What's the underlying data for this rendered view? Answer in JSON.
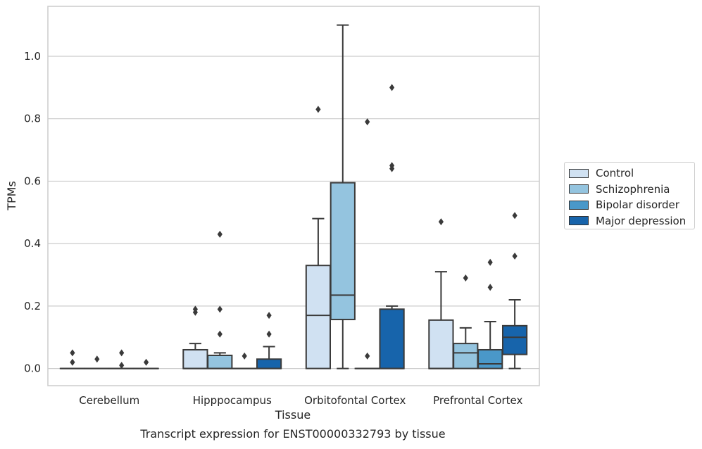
{
  "chart_data": {
    "type": "box",
    "caption": "Transcript expression for ENST00000332793 by tissue",
    "xlabel": "Tissue",
    "ylabel": "TPMs",
    "ylim": [
      -0.055,
      1.16
    ],
    "yticks": [
      0.0,
      0.2,
      0.4,
      0.6,
      0.8,
      1.0
    ],
    "ytick_labels": [
      "0.0",
      "0.2",
      "0.4",
      "0.6",
      "0.8",
      "1.0"
    ],
    "grid": "horizontal",
    "legend_position": "right-outside",
    "categories": [
      "Cerebellum",
      "Hipppocampus",
      "Orbitofontal Cortex",
      "Prefrontal Cortex"
    ],
    "series": [
      {
        "name": "Control",
        "color": "#d0e1f2",
        "boxes": [
          {
            "whislo": 0,
            "q1": 0,
            "med": 0,
            "q3": 0,
            "whishi": 0,
            "fliers": [
              0.05,
              0.02
            ]
          },
          {
            "whislo": 0,
            "q1": 0,
            "med": 0,
            "q3": 0.06,
            "whishi": 0.08,
            "fliers": [
              0.19,
              0.18
            ]
          },
          {
            "whislo": 0,
            "q1": 0,
            "med": 0.17,
            "q3": 0.33,
            "whishi": 0.48,
            "fliers": [
              0.83
            ]
          },
          {
            "whislo": 0,
            "q1": 0,
            "med": 0,
            "q3": 0.155,
            "whishi": 0.31,
            "fliers": [
              0.47
            ]
          }
        ]
      },
      {
        "name": "Schizophrenia",
        "color": "#94c4df",
        "boxes": [
          {
            "whislo": 0,
            "q1": 0,
            "med": 0,
            "q3": 0,
            "whishi": 0,
            "fliers": [
              0.03
            ]
          },
          {
            "whislo": 0,
            "q1": 0,
            "med": 0,
            "q3": 0.042,
            "whishi": 0.05,
            "fliers": [
              0.43,
              0.19,
              0.11
            ]
          },
          {
            "whislo": 0,
            "q1": 0.157,
            "med": 0.235,
            "q3": 0.595,
            "whishi": 1.1,
            "fliers": []
          },
          {
            "whislo": 0,
            "q1": 0,
            "med": 0.05,
            "q3": 0.08,
            "whishi": 0.13,
            "fliers": [
              0.29
            ]
          }
        ]
      },
      {
        "name": "Bipolar disorder",
        "color": "#4a98c9",
        "boxes": [
          {
            "whislo": 0,
            "q1": 0,
            "med": 0,
            "q3": 0,
            "whishi": 0,
            "fliers": [
              0.05,
              0.01
            ]
          },
          {
            "whislo": 0,
            "q1": 0,
            "med": 0,
            "q3": 0,
            "whishi": 0,
            "fliers": [
              0.04
            ]
          },
          {
            "whislo": 0,
            "q1": 0,
            "med": 0,
            "q3": 0,
            "whishi": 0,
            "fliers": [
              0.79,
              0.04
            ]
          },
          {
            "whislo": 0,
            "q1": 0,
            "med": 0.015,
            "q3": 0.06,
            "whishi": 0.15,
            "fliers": [
              0.34,
              0.26
            ]
          }
        ]
      },
      {
        "name": "Major depression",
        "color": "#1764ab",
        "boxes": [
          {
            "whislo": 0,
            "q1": 0,
            "med": 0,
            "q3": 0,
            "whishi": 0,
            "fliers": [
              0.02
            ]
          },
          {
            "whislo": 0,
            "q1": 0,
            "med": 0,
            "q3": 0.03,
            "whishi": 0.07,
            "fliers": [
              0.17,
              0.11
            ]
          },
          {
            "whislo": 0,
            "q1": 0,
            "med": 0,
            "q3": 0.19,
            "whishi": 0.2,
            "fliers": [
              0.9,
              0.65,
              0.64
            ]
          },
          {
            "whislo": 0,
            "q1": 0.045,
            "med": 0.1,
            "q3": 0.137,
            "whishi": 0.22,
            "fliers": [
              0.49,
              0.36
            ]
          }
        ]
      }
    ]
  }
}
